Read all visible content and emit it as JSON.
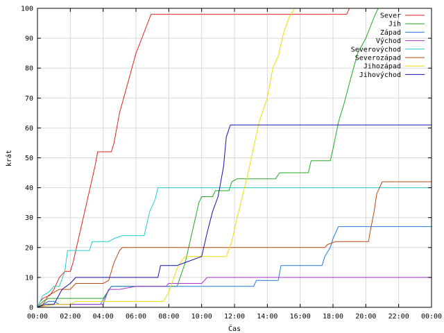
{
  "chart_data": {
    "type": "line",
    "title": "",
    "xlabel": "Čas",
    "ylabel": "krát",
    "xlim": [
      "00:00",
      "24:00"
    ],
    "ylim": [
      0,
      100
    ],
    "x_tick_labels": [
      "00:00",
      "02:00",
      "04:00",
      "06:00",
      "08:00",
      "10:00",
      "12:00",
      "14:00",
      "16:00",
      "18:00",
      "20:00",
      "22:00",
      "00:00"
    ],
    "y_tick_labels": [
      "0",
      "10",
      "20",
      "30",
      "40",
      "50",
      "60",
      "70",
      "80",
      "90",
      "100"
    ],
    "grid": true,
    "legend_position": "top-right",
    "series": [
      {
        "name": "Sever",
        "color": "#dd2222",
        "points": [
          [
            "00:00",
            0
          ],
          [
            "00:10",
            2
          ],
          [
            "00:20",
            3
          ],
          [
            "00:45",
            4
          ],
          [
            "01:00",
            6
          ],
          [
            "01:20",
            10
          ],
          [
            "01:40",
            12
          ],
          [
            "02:00",
            12
          ],
          [
            "02:10",
            15
          ],
          [
            "03:00",
            35
          ],
          [
            "03:30",
            47
          ],
          [
            "03:40",
            52
          ],
          [
            "04:30",
            52
          ],
          [
            "04:40",
            55
          ],
          [
            "05:00",
            65
          ],
          [
            "05:30",
            75
          ],
          [
            "06:00",
            85
          ],
          [
            "06:30",
            92
          ],
          [
            "06:55",
            98
          ],
          [
            "18:50",
            98
          ],
          [
            "19:00",
            100
          ]
        ]
      },
      {
        "name": "Jih",
        "color": "#22aa22",
        "points": [
          [
            "00:00",
            0
          ],
          [
            "00:20",
            2
          ],
          [
            "00:40",
            3
          ],
          [
            "04:00",
            3
          ],
          [
            "04:15",
            5
          ],
          [
            "04:30",
            7
          ],
          [
            "08:30",
            7
          ],
          [
            "09:00",
            15
          ],
          [
            "09:30",
            27
          ],
          [
            "09:50",
            35
          ],
          [
            "10:00",
            37
          ],
          [
            "10:40",
            37
          ],
          [
            "10:50",
            39
          ],
          [
            "11:40",
            39
          ],
          [
            "11:50",
            42
          ],
          [
            "12:10",
            43
          ],
          [
            "14:30",
            43
          ],
          [
            "14:45",
            45
          ],
          [
            "16:30",
            45
          ],
          [
            "16:40",
            49
          ],
          [
            "17:50",
            49
          ],
          [
            "18:00",
            53
          ],
          [
            "18:20",
            62
          ],
          [
            "18:40",
            68
          ],
          [
            "19:00",
            75
          ],
          [
            "19:30",
            85
          ],
          [
            "20:00",
            90
          ],
          [
            "20:30",
            97
          ],
          [
            "20:45",
            100
          ]
        ]
      },
      {
        "name": "Západ",
        "color": "#2277dd",
        "points": [
          [
            "00:00",
            0
          ],
          [
            "00:20",
            1
          ],
          [
            "00:40",
            2
          ],
          [
            "01:00",
            2
          ],
          [
            "01:20",
            1
          ],
          [
            "03:50",
            1
          ],
          [
            "04:10",
            4
          ],
          [
            "04:30",
            7
          ],
          [
            "13:10",
            7
          ],
          [
            "13:20",
            9
          ],
          [
            "14:40",
            9
          ],
          [
            "14:50",
            14
          ],
          [
            "17:20",
            14
          ],
          [
            "17:30",
            17
          ],
          [
            "17:50",
            20
          ],
          [
            "18:00",
            23
          ],
          [
            "18:10",
            25
          ],
          [
            "18:20",
            27
          ],
          [
            "24:00",
            27
          ]
        ]
      },
      {
        "name": "Východ",
        "color": "#aa33cc",
        "points": [
          [
            "00:00",
            0
          ],
          [
            "01:00",
            1
          ],
          [
            "04:00",
            1
          ],
          [
            "04:20",
            6
          ],
          [
            "05:00",
            6
          ],
          [
            "06:00",
            7
          ],
          [
            "07:50",
            7
          ],
          [
            "08:00",
            8
          ],
          [
            "10:00",
            8
          ],
          [
            "10:20",
            10
          ],
          [
            "24:00",
            10
          ]
        ]
      },
      {
        "name": "Severovýchod",
        "color": "#22cccc",
        "points": [
          [
            "00:00",
            0
          ],
          [
            "00:10",
            2
          ],
          [
            "00:20",
            4
          ],
          [
            "00:40",
            5
          ],
          [
            "01:00",
            7
          ],
          [
            "01:20",
            7
          ],
          [
            "01:40",
            12
          ],
          [
            "01:50",
            19
          ],
          [
            "03:10",
            19
          ],
          [
            "03:20",
            22
          ],
          [
            "04:20",
            22
          ],
          [
            "04:40",
            23
          ],
          [
            "05:10",
            24
          ],
          [
            "06:30",
            24
          ],
          [
            "06:50",
            32
          ],
          [
            "07:10",
            36
          ],
          [
            "07:20",
            40
          ],
          [
            "24:00",
            40
          ]
        ]
      },
      {
        "name": "Severozápad",
        "color": "#bb4411",
        "points": [
          [
            "00:00",
            0
          ],
          [
            "00:20",
            1
          ],
          [
            "00:40",
            4
          ],
          [
            "01:00",
            5
          ],
          [
            "01:20",
            6
          ],
          [
            "01:40",
            6
          ],
          [
            "02:00",
            6
          ],
          [
            "02:20",
            8
          ],
          [
            "03:30",
            8
          ],
          [
            "04:00",
            8
          ],
          [
            "04:20",
            9
          ],
          [
            "04:40",
            15
          ],
          [
            "05:00",
            19
          ],
          [
            "05:10",
            20
          ],
          [
            "17:30",
            20
          ],
          [
            "17:40",
            21
          ],
          [
            "18:10",
            22
          ],
          [
            "20:10",
            22
          ],
          [
            "20:15",
            25
          ],
          [
            "20:30",
            32
          ],
          [
            "20:40",
            38
          ],
          [
            "21:00",
            42
          ],
          [
            "24:00",
            42
          ]
        ]
      },
      {
        "name": "Jihozápad",
        "color": "#eedd00",
        "points": [
          [
            "00:00",
            0
          ],
          [
            "01:00",
            1
          ],
          [
            "02:00",
            1
          ],
          [
            "02:20",
            2
          ],
          [
            "07:40",
            2
          ],
          [
            "08:00",
            5
          ],
          [
            "08:30",
            13
          ],
          [
            "08:50",
            16
          ],
          [
            "09:00",
            17
          ],
          [
            "11:30",
            17
          ],
          [
            "11:50",
            22
          ],
          [
            "12:10",
            30
          ],
          [
            "12:50",
            45
          ],
          [
            "13:30",
            62
          ],
          [
            "14:00",
            70
          ],
          [
            "14:20",
            80
          ],
          [
            "14:40",
            84
          ],
          [
            "15:00",
            92
          ],
          [
            "15:20",
            97
          ],
          [
            "15:40",
            100
          ]
        ]
      },
      {
        "name": "Jihovýchod",
        "color": "#1111aa",
        "points": [
          [
            "00:00",
            0
          ],
          [
            "00:30",
            1
          ],
          [
            "01:00",
            1
          ],
          [
            "01:30",
            6
          ],
          [
            "02:00",
            8
          ],
          [
            "02:20",
            10
          ],
          [
            "07:20",
            10
          ],
          [
            "07:30",
            14
          ],
          [
            "08:30",
            14
          ],
          [
            "09:00",
            15
          ],
          [
            "10:00",
            17
          ],
          [
            "10:20",
            25
          ],
          [
            "10:40",
            32
          ],
          [
            "11:00",
            37
          ],
          [
            "11:20",
            47
          ],
          [
            "11:30",
            57
          ],
          [
            "11:45",
            61
          ],
          [
            "24:00",
            61
          ]
        ]
      }
    ]
  }
}
